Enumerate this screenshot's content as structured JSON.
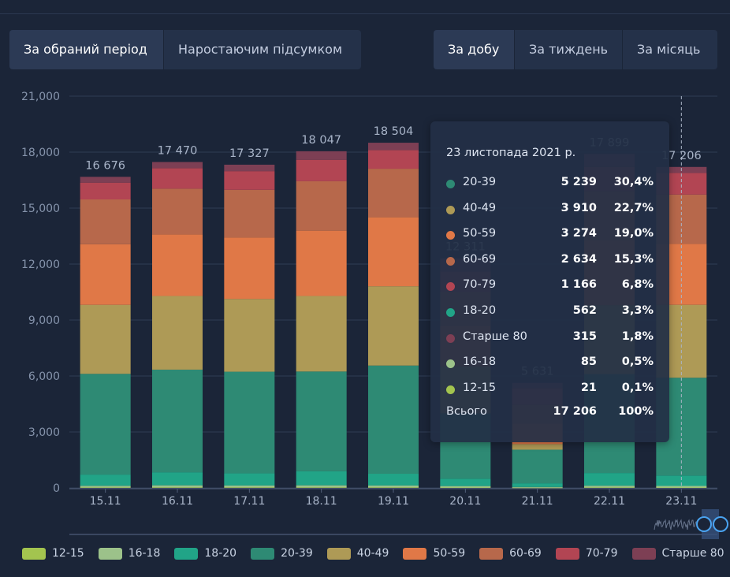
{
  "controls": {
    "period_tabs": [
      "За обраний період",
      "Наростаючим підсумком"
    ],
    "period_active": 0,
    "range_tabs": [
      "За добу",
      "За тиждень",
      "За місяць"
    ],
    "range_active": 0
  },
  "colors": {
    "12-15": "#a3c44f",
    "16-18": "#9cc28a",
    "18-20": "#21a487",
    "20-39": "#2e8a74",
    "40-49": "#ae9a56",
    "50-59": "#e07847",
    "60-69": "#b7684b",
    "70-79": "#b24553",
    "Старше 80": "#7d3f54"
  },
  "chart_data": {
    "type": "bar",
    "stacked": true,
    "categories": [
      "15.11",
      "16.11",
      "17.11",
      "18.11",
      "19.11",
      "20.11",
      "21.11",
      "22.11",
      "23.11"
    ],
    "totals": [
      "16 676",
      "17 470",
      "17 327",
      "18 047",
      "18 504",
      "12 311",
      "5 631",
      "17 899",
      "17 206"
    ],
    "y_ticks": [
      "21,000",
      "18,000",
      "15,000",
      "12,000",
      "9,000",
      "6,000",
      "3,000",
      "0"
    ],
    "ylim": [
      0,
      21000
    ],
    "series": [
      {
        "name": "12-15",
        "values": [
          25,
          30,
          30,
          30,
          30,
          20,
          10,
          25,
          21
        ]
      },
      {
        "name": "16-18",
        "values": [
          90,
          110,
          100,
          110,
          100,
          80,
          40,
          95,
          85
        ]
      },
      {
        "name": "18-20",
        "values": [
          600,
          700,
          650,
          750,
          630,
          400,
          200,
          680,
          562
        ]
      },
      {
        "name": "20-39",
        "values": [
          5400,
          5500,
          5450,
          5350,
          5800,
          3500,
          1800,
          5300,
          5239
        ]
      },
      {
        "name": "40-49",
        "values": [
          3700,
          3950,
          3900,
          4050,
          4250,
          2500,
          300,
          3700,
          3910
        ]
      },
      {
        "name": "50-59",
        "values": [
          3250,
          3300,
          3300,
          3500,
          3700,
          2200,
          1100,
          3500,
          3274
        ]
      },
      {
        "name": "60-69",
        "values": [
          2400,
          2450,
          2550,
          2650,
          2600,
          1800,
          1000,
          2600,
          2634
        ]
      },
      {
        "name": "70-79",
        "values": [
          900,
          1100,
          1000,
          1150,
          1000,
          1100,
          900,
          1300,
          1166
        ]
      },
      {
        "name": "Старше 80",
        "values": [
          311,
          330,
          347,
          457,
          394,
          711,
          281,
          699,
          315
        ]
      }
    ]
  },
  "tooltip": {
    "date": "23 листопада 2021 р.",
    "rows": [
      {
        "label": "20-39",
        "value": "5 239",
        "pct": "30,4%",
        "color": "#2e8a74"
      },
      {
        "label": "40-49",
        "value": "3 910",
        "pct": "22,7%",
        "color": "#ae9a56"
      },
      {
        "label": "50-59",
        "value": "3 274",
        "pct": "19,0%",
        "color": "#e07847"
      },
      {
        "label": "60-69",
        "value": "2 634",
        "pct": "15,3%",
        "color": "#b7684b"
      },
      {
        "label": "70-79",
        "value": "1 166",
        "pct": "6,8%",
        "color": "#b24553"
      },
      {
        "label": "18-20",
        "value": "562",
        "pct": "3,3%",
        "color": "#21a487"
      },
      {
        "label": "Старше 80",
        "value": "315",
        "pct": "1,8%",
        "color": "#7d3f54"
      },
      {
        "label": "16-18",
        "value": "85",
        "pct": "0,5%",
        "color": "#9cc28a"
      },
      {
        "label": "12-15",
        "value": "21",
        "pct": "0,1%",
        "color": "#a3c44f"
      }
    ],
    "total": {
      "label": "Всього",
      "value": "17 206",
      "pct": "100%"
    }
  }
}
